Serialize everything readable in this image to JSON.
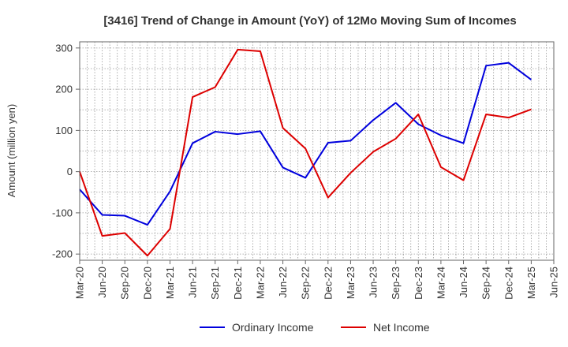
{
  "chart_data": {
    "type": "line",
    "title": "[3416]  Trend of Change in Amount (YoY) of 12Mo Moving Sum of Incomes",
    "ylabel": "Amount (million yen)",
    "xlabel": "",
    "ylim": [
      -215,
      315
    ],
    "yticks": [
      300,
      200,
      100,
      0,
      -100,
      -200
    ],
    "x_ticks": [
      "Mar-20",
      "Jun-20",
      "Sep-20",
      "Dec-20",
      "Mar-21",
      "Jun-21",
      "Sep-21",
      "Dec-21",
      "Mar-22",
      "Jun-22",
      "Sep-22",
      "Dec-22",
      "Mar-23",
      "Jun-23",
      "Sep-23",
      "Dec-23",
      "Mar-24",
      "Jun-24",
      "Sep-24",
      "Dec-24",
      "Mar-25",
      "Jun-25"
    ],
    "grid": true,
    "legend_position": "bottom-center",
    "series": [
      {
        "name": "Ordinary Income",
        "color": "#0000dd",
        "values": [
          -43,
          -105,
          -107,
          -129,
          -48,
          69,
          97,
          91,
          98,
          10,
          -15,
          70,
          75,
          125,
          167,
          115,
          88,
          69,
          257,
          264,
          223
        ]
      },
      {
        "name": "Net Income",
        "color": "#dd0000",
        "values": [
          0,
          -156,
          -149,
          -204,
          -139,
          181,
          205,
          296,
          292,
          106,
          56,
          -63,
          -3,
          48,
          80,
          139,
          11,
          -21,
          139,
          131,
          151
        ]
      }
    ]
  }
}
